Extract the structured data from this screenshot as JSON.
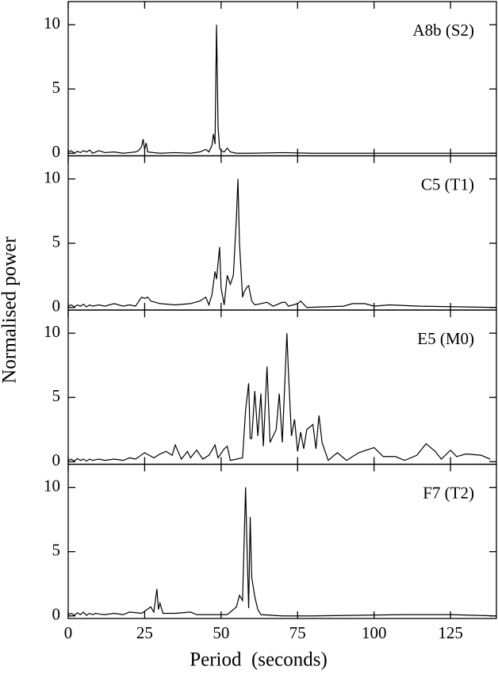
{
  "chart_data": [
    {
      "type": "line",
      "label": "A8b (S2)",
      "ylabel": "Normalised power",
      "x": [
        0,
        1,
        2,
        3,
        4,
        5,
        6,
        7,
        8,
        9,
        10,
        12,
        15,
        18,
        20,
        22,
        23,
        24,
        24.5,
        25,
        25.5,
        26,
        28,
        30,
        35,
        40,
        43,
        45,
        46,
        47,
        47.5,
        48,
        48.5,
        49,
        49.5,
        50,
        51,
        52,
        53,
        55,
        60,
        70,
        80,
        100,
        120,
        140
      ],
      "values": [
        0.1,
        0.2,
        0,
        0.15,
        0.05,
        0.2,
        0.1,
        0.25,
        0,
        0.1,
        0.2,
        0.05,
        0.1,
        0,
        0.05,
        0.1,
        0.2,
        0.5,
        1.1,
        0.3,
        0.8,
        0.1,
        0.05,
        0,
        0.05,
        0,
        0.1,
        0.3,
        0.1,
        0.6,
        1.5,
        0.7,
        10,
        2,
        0.4,
        0.2,
        0.1,
        0.4,
        0.1,
        0,
        0,
        0.05,
        0,
        0,
        0,
        0
      ],
      "color": "#000000",
      "xlim": [
        0,
        140
      ],
      "xticks": [
        0,
        25,
        50,
        75,
        100,
        125
      ],
      "ylim": [
        -0.2,
        11.8
      ],
      "yticks": [
        0,
        5,
        10
      ]
    },
    {
      "type": "line",
      "label": "C5 (T1)",
      "x": [
        0,
        1,
        2,
        3,
        4,
        5,
        6,
        7,
        8,
        9,
        10,
        12,
        15,
        18,
        20,
        22,
        24,
        25,
        26,
        27,
        30,
        35,
        40,
        43,
        45,
        46,
        47,
        48,
        48.5,
        49.5,
        50,
        51,
        52,
        53,
        54,
        55,
        55.5,
        56,
        57,
        57.5,
        58.5,
        59,
        60,
        61,
        63,
        65,
        67,
        70,
        71,
        72,
        75,
        76,
        78,
        90,
        93,
        97,
        100,
        105,
        115,
        140
      ],
      "values": [
        0.1,
        0.2,
        0.05,
        0.2,
        0.1,
        0.25,
        0.05,
        0.2,
        0.1,
        0.15,
        0.2,
        0.1,
        0.3,
        0.1,
        0.2,
        0.1,
        0.8,
        0.7,
        0.8,
        0.5,
        0.3,
        0.2,
        0.3,
        0.5,
        0.8,
        0.2,
        1,
        2.8,
        2.2,
        4.7,
        1.5,
        0.2,
        2.5,
        1.8,
        2.5,
        7,
        10,
        5,
        0.8,
        1.2,
        1.6,
        1.7,
        0.5,
        0.2,
        0.3,
        0.4,
        0.1,
        0.4,
        0.4,
        0.1,
        0.3,
        0.5,
        0,
        0.1,
        0.3,
        0.3,
        0.1,
        0.2,
        0.1,
        0
      ],
      "color": "#000000",
      "xlim": [
        0,
        140
      ],
      "xticks": [
        0,
        25,
        50,
        75,
        100,
        125
      ],
      "ylim": [
        -0.2,
        11.8
      ],
      "yticks": [
        0,
        5,
        10
      ]
    },
    {
      "type": "line",
      "label": "E5 (M0)",
      "x": [
        0,
        1,
        2,
        3,
        4,
        5,
        6,
        7,
        8,
        9,
        10,
        12,
        15,
        18,
        20,
        22,
        25,
        28,
        30,
        32,
        34,
        35,
        37,
        39,
        40,
        42,
        44,
        46,
        48,
        49,
        51,
        52,
        53,
        57,
        58,
        59,
        59.5,
        60,
        61,
        62,
        63,
        63.8,
        65,
        66,
        68,
        69,
        70,
        71.5,
        72,
        73,
        74,
        75,
        76,
        77,
        78,
        80,
        81,
        82,
        83,
        85,
        88,
        91,
        95,
        100,
        103,
        107,
        110,
        114,
        117,
        120,
        122,
        125,
        127,
        130,
        135,
        138
      ],
      "values": [
        0.1,
        0.2,
        0.05,
        0.25,
        0.1,
        0.2,
        0.05,
        0.2,
        0.1,
        0.15,
        0.2,
        0.1,
        0.2,
        0.1,
        0.3,
        0.2,
        0.7,
        0.3,
        0.6,
        0.8,
        0.5,
        1.3,
        0.2,
        0.8,
        0.3,
        0.9,
        0.2,
        0.5,
        1.3,
        0.3,
        1,
        1.2,
        0.1,
        0.3,
        4,
        6.1,
        1.8,
        1.8,
        5.5,
        2,
        5.3,
        1.2,
        7.4,
        1.5,
        2.5,
        5.3,
        1.5,
        10,
        7,
        2,
        3.3,
        0.8,
        2.3,
        1,
        2.5,
        2.9,
        1,
        3.6,
        1.5,
        0.1,
        0.7,
        0.1,
        0.7,
        1.1,
        0.4,
        0.4,
        0.1,
        0.5,
        1.4,
        0.8,
        0.2,
        0.9,
        0.4,
        0.6,
        0.5,
        0.2
      ],
      "color": "#000000",
      "xlim": [
        0,
        140
      ],
      "xticks": [
        0,
        25,
        50,
        75,
        100,
        125
      ],
      "ylim": [
        -0.2,
        11.8
      ],
      "yticks": [
        0,
        5,
        10
      ]
    },
    {
      "type": "line",
      "label": "F7 (T2)",
      "xlabel": "Period  (seconds)",
      "x": [
        0,
        1,
        2,
        3,
        4,
        5,
        6,
        7,
        8,
        9,
        10,
        12,
        15,
        18,
        20,
        24,
        27,
        28,
        29,
        29.5,
        30,
        31,
        35,
        40,
        42,
        52,
        55,
        56,
        57,
        58,
        58.5,
        59,
        59.5,
        60,
        61,
        62,
        63,
        70,
        80,
        110,
        125,
        140
      ],
      "values": [
        0.1,
        0.2,
        0.05,
        0.25,
        0.1,
        0.3,
        0.05,
        0.2,
        0.1,
        0.2,
        0.15,
        0.1,
        0.2,
        0.1,
        0.3,
        0.2,
        0.7,
        0.3,
        2.1,
        0.5,
        1,
        0.2,
        0.2,
        0.3,
        0.1,
        0.1,
        0.7,
        1.6,
        1.2,
        10,
        5,
        0.6,
        7.7,
        3,
        1.5,
        0.5,
        0.1,
        0,
        0,
        0.1,
        0.1,
        0
      ],
      "color": "#000000",
      "xlim": [
        0,
        140
      ],
      "xticks": [
        0,
        25,
        50,
        75,
        100,
        125
      ],
      "ylim": [
        -0.2,
        11.8
      ],
      "yticks": [
        0,
        5,
        10
      ]
    }
  ]
}
